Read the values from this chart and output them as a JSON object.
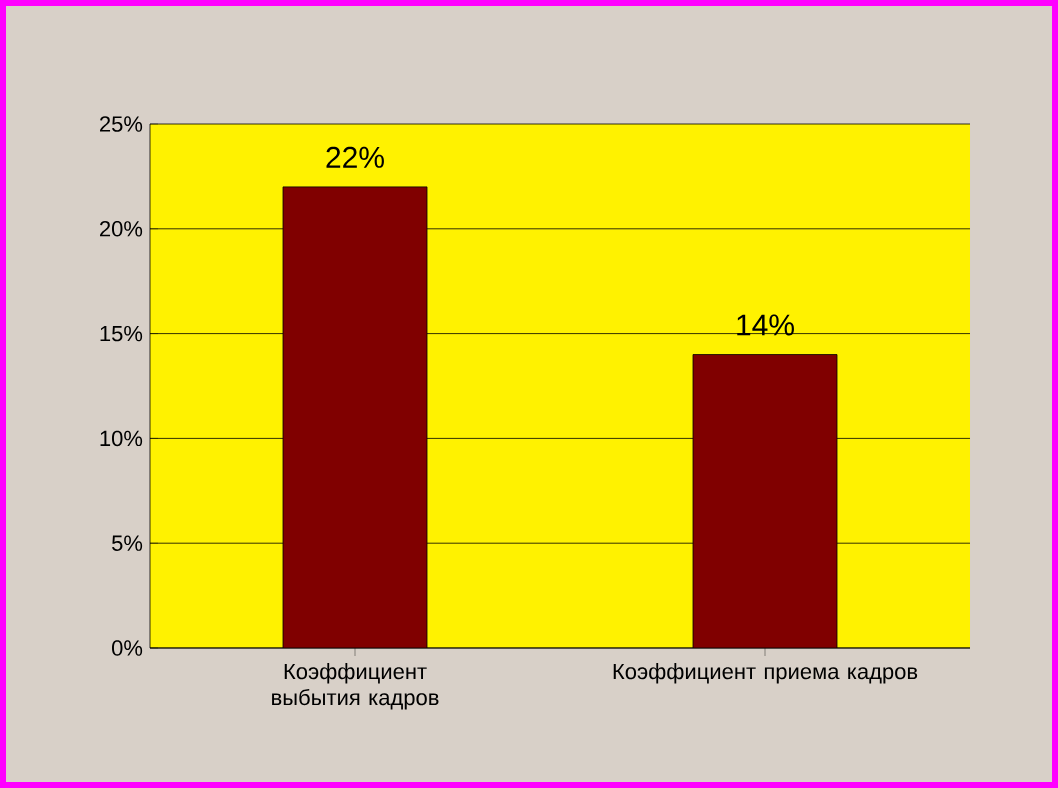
{
  "chart_data": {
    "type": "bar",
    "categories": [
      "Коэффициент выбытия кадров",
      "Коэффициент приема кадров"
    ],
    "values": [
      22,
      14
    ],
    "value_labels": [
      "22%",
      "14%"
    ],
    "color": "#800000",
    "ylim": [
      0,
      25
    ],
    "yticks": [
      {
        "value": 0,
        "label": "0%"
      },
      {
        "value": 5,
        "label": "5%"
      },
      {
        "value": 10,
        "label": "10%"
      },
      {
        "value": 15,
        "label": "15%"
      },
      {
        "value": 20,
        "label": "20%"
      },
      {
        "value": 25,
        "label": "25%"
      }
    ],
    "grid": "y"
  }
}
